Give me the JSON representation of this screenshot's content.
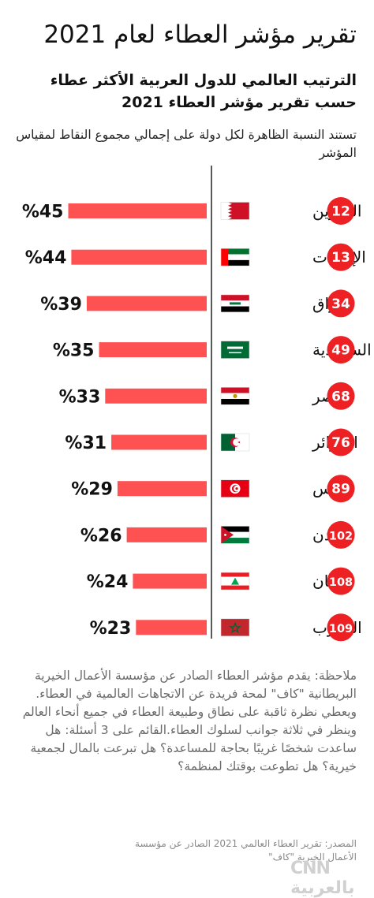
{
  "title": "تقرير مؤشر العطاء لعام 2021",
  "subtitle": "الترتيب العالمي للدول العربية الأكثر عطاء حسب تقرير مؤشر العطاء 2021",
  "description": "تستند النسبة الظاهرة لكل دولة على إجمالي مجموع النقاط لمقياس المؤشر",
  "note": "ملاحظة: يقدم مؤشر العطاء الصادر عن مؤسسة الأعمال الخيرية البريطانية \"كاف\" لمحة فريدة عن الاتجاهات العالمية في العطاء. ويعطي نظرة ثاقبة على نطاق وطبيعة العطاء في جميع أنحاء العالم وينظر في ثلاثة جوانب لسلوك العطاء.القائم على 3 أسئلة: هل ساعدت شخصًا غريبًا بحاجة للمساعدة؟ هل تبرعت بالمال لجمعية خيرية؟ هل تطوعت بوقتك لمنظمة؟",
  "source": "المصدر: تقرير العطاء العالمي 2021 الصادر عن مؤسسة الأعمال الخيرية \"كاف\"",
  "logo": "CNN بالعربية",
  "colors": {
    "bar": "#fe5252",
    "rank_circle": "#ed2024",
    "axis": "#222222"
  },
  "chart_data": {
    "type": "bar",
    "orientation": "horizontal",
    "categories": [
      "البحرين",
      "الإمارات",
      "العراق",
      "السعودية",
      "مصر",
      "الجزائر",
      "تونس",
      "الأردن",
      "لبنان",
      "المغرب"
    ],
    "values": [
      45,
      44,
      39,
      35,
      33,
      31,
      29,
      26,
      24,
      23
    ],
    "value_labels": [
      "%45",
      "%44",
      "%39",
      "%35",
      "%33",
      "%31",
      "%29",
      "%26",
      "%24",
      "%23"
    ],
    "ranks": [
      "12",
      "13",
      "34",
      "49",
      "68",
      "76",
      "89",
      "102",
      "108",
      "109"
    ],
    "flags": [
      "bahrain-flag",
      "uae-flag",
      "iraq-flag",
      "saudi-flag",
      "egypt-flag",
      "algeria-flag",
      "tunisia-flag",
      "jordan-flag",
      "lebanon-flag",
      "morocco-flag"
    ],
    "xlim": [
      0,
      50
    ],
    "grid": false,
    "unit": "%"
  }
}
